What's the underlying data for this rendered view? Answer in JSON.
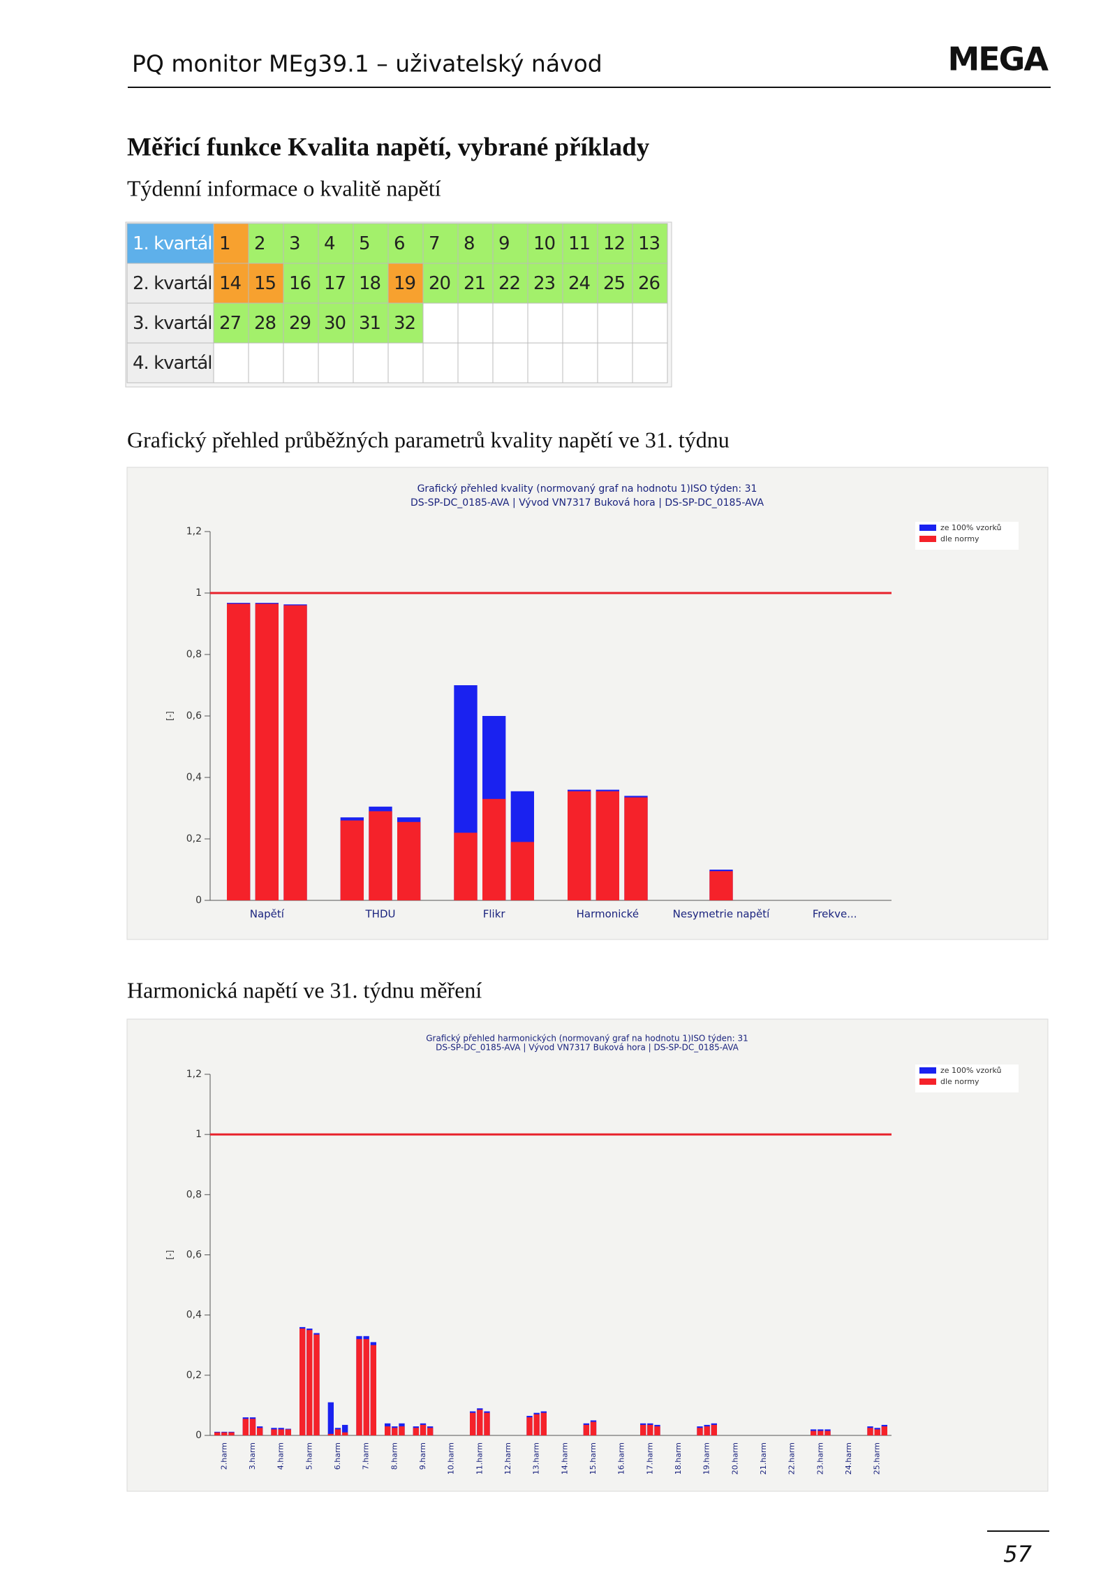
{
  "header": {
    "title": "PQ monitor MEg39.1 – uživatelský návod",
    "logo": "MEGA"
  },
  "heading": "Měřicí funkce Kvalita napětí, vybrané příklady",
  "table_caption": "Týdenní informace o kvalitě napětí",
  "table": {
    "rows": [
      {
        "label": "1. kvartál",
        "label_color": "#5eb0ea",
        "cells": [
          {
            "week": 1,
            "color": "#f7a12f"
          },
          {
            "week": 2,
            "color": "#a3f06b"
          },
          {
            "week": 3,
            "color": "#a3f06b"
          },
          {
            "week": 4,
            "color": "#a3f06b"
          },
          {
            "week": 5,
            "color": "#a3f06b"
          },
          {
            "week": 6,
            "color": "#a3f06b"
          },
          {
            "week": 7,
            "color": "#a3f06b"
          },
          {
            "week": 8,
            "color": "#a3f06b"
          },
          {
            "week": 9,
            "color": "#a3f06b"
          },
          {
            "week": 10,
            "color": "#a3f06b"
          },
          {
            "week": 11,
            "color": "#a3f06b"
          },
          {
            "week": 12,
            "color": "#a3f06b"
          },
          {
            "week": 13,
            "color": "#a3f06b"
          }
        ]
      },
      {
        "label": "2. kvartál",
        "label_color": "#eeeeee",
        "cells": [
          {
            "week": 14,
            "color": "#f7a12f"
          },
          {
            "week": 15,
            "color": "#f7a12f"
          },
          {
            "week": 16,
            "color": "#a3f06b"
          },
          {
            "week": 17,
            "color": "#a3f06b"
          },
          {
            "week": 18,
            "color": "#a3f06b"
          },
          {
            "week": 19,
            "color": "#f7a12f"
          },
          {
            "week": 20,
            "color": "#a3f06b"
          },
          {
            "week": 21,
            "color": "#a3f06b"
          },
          {
            "week": 22,
            "color": "#a3f06b"
          },
          {
            "week": 23,
            "color": "#a3f06b"
          },
          {
            "week": 24,
            "color": "#a3f06b"
          },
          {
            "week": 25,
            "color": "#a3f06b"
          },
          {
            "week": 26,
            "color": "#a3f06b"
          }
        ]
      },
      {
        "label": "3. kvartál",
        "label_color": "#eeeeee",
        "cells": [
          {
            "week": 27,
            "color": "#a3f06b"
          },
          {
            "week": 28,
            "color": "#a3f06b"
          },
          {
            "week": 29,
            "color": "#a3f06b"
          },
          {
            "week": 30,
            "color": "#a3f06b"
          },
          {
            "week": 31,
            "color": "#a3f06b"
          },
          {
            "week": 32,
            "color": "#a3f06b"
          }
        ]
      },
      {
        "label": "4. kvartál",
        "label_color": "#eeeeee",
        "cells": []
      }
    ]
  },
  "chart1_caption": "Grafický přehled průběžných parametrů kvality napětí ve 31. týdnu",
  "chart2_caption": "Harmonická napětí ve 31. týdnu měření",
  "chart_data": [
    {
      "type": "bar",
      "title": "Grafický přehled kvality (normovaný graf na hodnotu 1)ISO týden: 31",
      "subtitle": "DS-SP-DC_0185-AVA | Vývod VN7317 Buková hora | DS-SP-DC_0185-AVA",
      "ylabel": "[-]",
      "categories": [
        null,
        "Napětí",
        null,
        null,
        "THDU",
        null,
        null,
        "Flikr",
        null,
        null,
        "Harmonické",
        null,
        null,
        "Nesymetrie napětí",
        null,
        null,
        "Frekve...",
        null
      ],
      "series": [
        {
          "name": "ze 100% vzorků",
          "color": "#1a22f0",
          "values": [
            0.968,
            0.968,
            0.963,
            0.27,
            0.305,
            0.27,
            0.7,
            0.6,
            0.355,
            0.36,
            0.36,
            0.34,
            null,
            0.1,
            null,
            null,
            null,
            null
          ]
        },
        {
          "name": "dle normy",
          "color": "#f5222a",
          "values": [
            0.965,
            0.965,
            0.96,
            0.26,
            0.29,
            0.255,
            0.22,
            0.33,
            0.19,
            0.355,
            0.355,
            0.335,
            null,
            0.095,
            null,
            null,
            null,
            null
          ]
        }
      ],
      "ylim": [
        0,
        1.2
      ],
      "yticks": [
        0,
        {
          "value": 0.2,
          "label": "0,2"
        },
        {
          "value": 0.4,
          "label": "0,4"
        },
        {
          "value": 0.6,
          "label": "0,6"
        },
        {
          "value": 0.8,
          "label": "0,8"
        },
        1,
        {
          "value": 1.2,
          "label": "1,2"
        }
      ],
      "reference_line": 1,
      "reference_color": "#e8202a",
      "legend": "top-right"
    },
    {
      "type": "bar",
      "title": "Grafický přehled harmonických (normovaný graf na hodnotu 1)ISO týden: 31",
      "subtitle": "DS-SP-DC_0185-AVA | Vývod VN7317 Buková hora | DS-SP-DC_0185-AVA",
      "ylabel": "[-]",
      "categories": [
        null,
        "2.harm",
        null,
        null,
        "3.harm",
        null,
        null,
        "4.harm",
        null,
        null,
        "5.harm",
        null,
        null,
        "6.harm",
        null,
        null,
        "7.harm",
        null,
        null,
        "8.harm",
        null,
        null,
        "9.harm",
        null,
        null,
        "10.harm",
        null,
        null,
        "11.harm",
        null,
        null,
        "12.harm",
        null,
        null,
        "13.harm",
        null,
        null,
        "14.harm",
        null,
        null,
        "15.harm",
        null,
        null,
        "16.harm",
        null,
        null,
        "17.harm",
        null,
        null,
        "18.harm",
        null,
        null,
        "19.harm",
        null,
        null,
        "20.harm",
        null,
        null,
        "21.harm",
        null,
        null,
        "22.harm",
        null,
        null,
        "23.harm",
        null,
        null,
        "24.harm",
        null,
        null,
        "25.harm",
        null
      ],
      "series": [
        {
          "name": "ze 100% vzorků",
          "color": "#1a22f0",
          "values": [
            0.012,
            0.012,
            0.012,
            0.06,
            0.06,
            0.03,
            0.025,
            0.025,
            0.022,
            0.36,
            0.355,
            0.34,
            0.11,
            0.025,
            0.035,
            0.33,
            0.33,
            0.31,
            0.04,
            0.03,
            0.04,
            0.03,
            0.04,
            0.03,
            0,
            0,
            0,
            0.08,
            0.09,
            0.08,
            0,
            0,
            0,
            0.065,
            0.075,
            0.08,
            0,
            0,
            0,
            0.04,
            0.05,
            0,
            0,
            0,
            0,
            0.04,
            0.04,
            0.035,
            0,
            0,
            0,
            0.03,
            0.035,
            0.04,
            0,
            0,
            0,
            0,
            0,
            0,
            0,
            0,
            0,
            0.02,
            0.02,
            0.02,
            0,
            0,
            0,
            0.03,
            0.025,
            0.035
          ]
        },
        {
          "name": "dle normy",
          "color": "#f5222a",
          "values": [
            0.01,
            0.01,
            0.01,
            0.055,
            0.055,
            0.025,
            0.02,
            0.02,
            0.02,
            0.355,
            0.35,
            0.335,
            0.005,
            0.02,
            0.01,
            0.32,
            0.32,
            0.3,
            0.03,
            0.025,
            0.03,
            0.025,
            0.035,
            0.025,
            0,
            0,
            0,
            0.075,
            0.085,
            0.075,
            0,
            0,
            0,
            0.06,
            0.07,
            0.075,
            0,
            0,
            0,
            0.035,
            0.045,
            0,
            0,
            0,
            0,
            0.035,
            0.035,
            0.03,
            0,
            0,
            0,
            0.025,
            0.03,
            0.035,
            0,
            0,
            0,
            0,
            0,
            0,
            0,
            0,
            0,
            0.015,
            0.015,
            0.015,
            0,
            0,
            0,
            0.025,
            0.02,
            0.03
          ]
        }
      ],
      "ylim": [
        0,
        1.2
      ],
      "yticks": [
        0,
        {
          "value": 0.2,
          "label": "0,2"
        },
        {
          "value": 0.4,
          "label": "0,4"
        },
        {
          "value": 0.6,
          "label": "0,6"
        },
        {
          "value": 0.8,
          "label": "0,8"
        },
        1,
        {
          "value": 1.2,
          "label": "1,2"
        }
      ],
      "reference_line": 1,
      "reference_color": "#e8202a",
      "legend": "top-right"
    }
  ],
  "page_number": "57"
}
